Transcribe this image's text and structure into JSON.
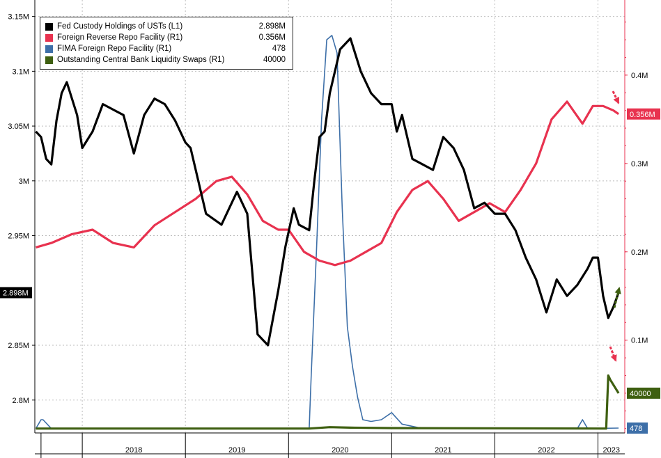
{
  "chart_data": {
    "type": "line",
    "x_years": [
      "2018",
      "2019",
      "2020",
      "2021",
      "2022",
      "2023"
    ],
    "left_axis": {
      "ticks": [
        "3.15M",
        "3.1M",
        "3.05M",
        "3M",
        "2.95M",
        "2.85M",
        "2.8M"
      ],
      "tick_values": [
        3.15,
        3.1,
        3.05,
        3.0,
        2.95,
        2.85,
        2.8
      ],
      "range": [
        2.77,
        3.165
      ],
      "unit": "M"
    },
    "right_axis": {
      "ticks": [
        "0.4M",
        "0.3M",
        "0.2M",
        "0.1M"
      ],
      "tick_values": [
        0.4,
        0.3,
        0.2,
        0.1
      ],
      "range": [
        -0.005,
        0.485
      ],
      "unit": "M"
    },
    "legend": [
      {
        "name": "Fed Custody Holdings of USTs (L1)",
        "value": "2.898M",
        "color": "#000000"
      },
      {
        "name": "Foreign Reverse Repo Facility (R1)",
        "value": "0.356M",
        "color": "#e8324f"
      },
      {
        "name": "FIMA Foreign Repo Facility (R1)",
        "value": "478",
        "color": "#3d6fa8"
      },
      {
        "name": "Outstanding Central Bank Liquidity Swaps (R1)",
        "value": "40000",
        "color": "#3e5f10"
      }
    ],
    "last_value_labels": {
      "fed_custody": "2.898M",
      "foreign_reverse_repo": "0.356M",
      "liquidity_swaps": "40000",
      "fima": "478"
    },
    "series": [
      {
        "name": "Fed Custody Holdings of USTs (L1)",
        "axis": "left",
        "x": [
          2017.55,
          2017.6,
          2017.65,
          2017.7,
          2017.75,
          2017.8,
          2017.85,
          2017.95,
          2018.0,
          2018.1,
          2018.2,
          2018.3,
          2018.4,
          2018.5,
          2018.6,
          2018.7,
          2018.8,
          2018.9,
          2019.0,
          2019.05,
          2019.2,
          2019.35,
          2019.5,
          2019.6,
          2019.7,
          2019.8,
          2019.9,
          2019.97,
          2020.05,
          2020.1,
          2020.2,
          2020.25,
          2020.3,
          2020.35,
          2020.4,
          2020.5,
          2020.6,
          2020.7,
          2020.8,
          2020.9,
          2021.0,
          2021.05,
          2021.1,
          2021.2,
          2021.3,
          2021.4,
          2021.5,
          2021.6,
          2021.7,
          2021.8,
          2021.9,
          2022.0,
          2022.1,
          2022.2,
          2022.3,
          2022.4,
          2022.5,
          2022.6,
          2022.7,
          2022.8,
          2022.9,
          2022.95,
          2023.0,
          2023.05,
          2023.1,
          2023.15,
          2023.2
        ],
        "y": [
          3.045,
          3.04,
          3.02,
          3.015,
          3.055,
          3.08,
          3.09,
          3.06,
          3.03,
          3.045,
          3.07,
          3.065,
          3.06,
          3.025,
          3.06,
          3.075,
          3.07,
          3.055,
          3.035,
          3.03,
          2.97,
          2.96,
          2.99,
          2.97,
          2.86,
          2.85,
          2.9,
          2.94,
          2.975,
          2.96,
          2.955,
          3.0,
          3.04,
          3.045,
          3.08,
          3.12,
          3.13,
          3.1,
          3.08,
          3.07,
          3.07,
          3.045,
          3.06,
          3.02,
          3.015,
          3.01,
          3.04,
          3.03,
          3.01,
          2.975,
          2.98,
          2.97,
          2.97,
          2.955,
          2.93,
          2.91,
          2.88,
          2.91,
          2.895,
          2.905,
          2.92,
          2.93,
          2.93,
          2.895,
          2.875,
          2.885,
          2.898
        ]
      },
      {
        "name": "Foreign Reverse Repo Facility (R1)",
        "axis": "right",
        "x": [
          2017.55,
          2017.7,
          2017.9,
          2018.1,
          2018.3,
          2018.5,
          2018.7,
          2018.9,
          2019.1,
          2019.3,
          2019.45,
          2019.6,
          2019.75,
          2019.9,
          2020.0,
          2020.15,
          2020.3,
          2020.45,
          2020.6,
          2020.75,
          2020.9,
          2021.05,
          2021.2,
          2021.35,
          2021.5,
          2021.65,
          2021.8,
          2021.95,
          2022.1,
          2022.25,
          2022.4,
          2022.55,
          2022.7,
          2022.85,
          2022.95,
          2023.05,
          2023.15,
          2023.2
        ],
        "y": [
          0.205,
          0.21,
          0.22,
          0.225,
          0.21,
          0.205,
          0.23,
          0.245,
          0.26,
          0.28,
          0.285,
          0.265,
          0.235,
          0.225,
          0.225,
          0.2,
          0.19,
          0.185,
          0.19,
          0.2,
          0.21,
          0.245,
          0.27,
          0.28,
          0.26,
          0.235,
          0.245,
          0.255,
          0.245,
          0.27,
          0.3,
          0.35,
          0.37,
          0.345,
          0.365,
          0.365,
          0.36,
          0.356
        ]
      },
      {
        "name": "FIMA Foreign Repo Facility (R1)",
        "axis": "right",
        "x": [
          2017.55,
          2017.6,
          2017.62,
          2017.7,
          2018.0,
          2020.2,
          2020.22,
          2020.27,
          2020.32,
          2020.37,
          2020.42,
          2020.47,
          2020.52,
          2020.57,
          2020.62,
          2020.67,
          2020.72,
          2020.8,
          2020.9,
          2021.0,
          2021.1,
          2021.3,
          2022.8,
          2022.85,
          2022.9,
          2023.2
        ],
        "y": [
          0.0,
          0.01,
          0.01,
          0.0,
          0.0,
          0.0,
          0.06,
          0.2,
          0.35,
          0.44,
          0.445,
          0.425,
          0.25,
          0.115,
          0.07,
          0.035,
          0.01,
          0.008,
          0.01,
          0.018,
          0.005,
          0.0,
          0.0,
          0.01,
          0.0,
          0.0005
        ]
      },
      {
        "name": "Outstanding Central Bank Liquidity Swaps (R1)",
        "axis": "right",
        "x": [
          2017.55,
          2020.2,
          2020.4,
          2020.6,
          2021.0,
          2023.08,
          2023.1,
          2023.12,
          2023.2
        ],
        "y": [
          0.0,
          0.0,
          0.0015,
          0.001,
          0.0005,
          0.0,
          0.06,
          0.055,
          0.04
        ]
      }
    ]
  }
}
